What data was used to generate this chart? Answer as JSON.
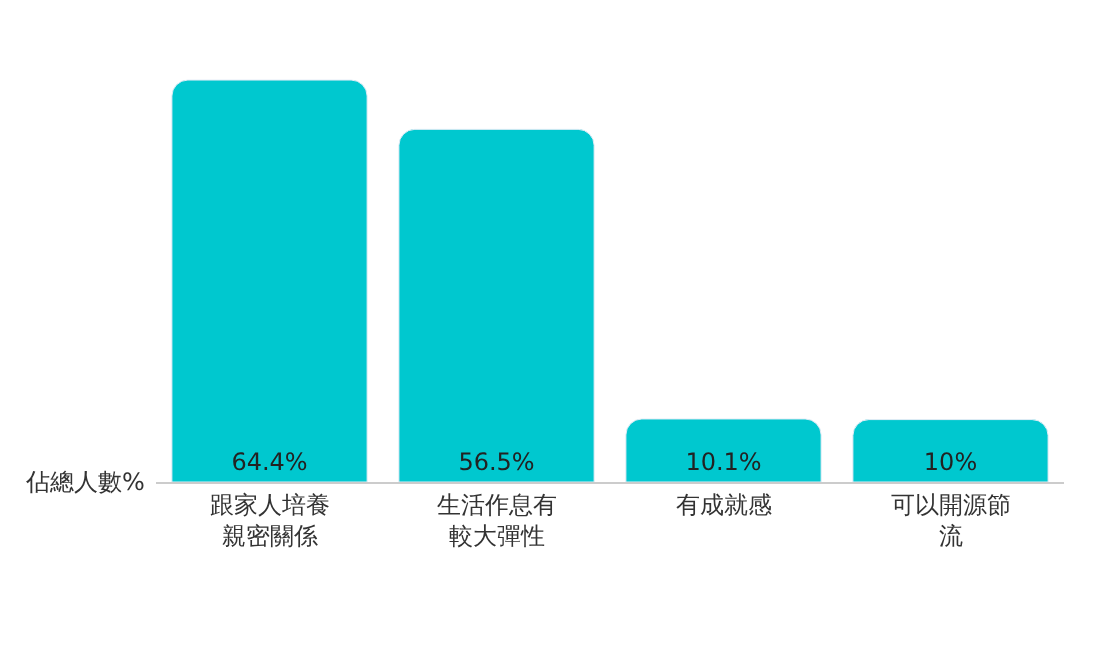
{
  "chart_data": {
    "type": "bar",
    "ylabel": "佔總人數%",
    "categories": [
      "跟家人培養親密關係",
      "生活作息有較大彈性",
      "有成就感",
      "可以開源節流"
    ],
    "values": [
      64.4,
      56.5,
      10.1,
      10
    ],
    "value_labels": [
      "64.4%",
      "56.5%",
      "10.1%",
      "10%"
    ],
    "color": "#00c8cf",
    "tick_labels": "x"
  }
}
